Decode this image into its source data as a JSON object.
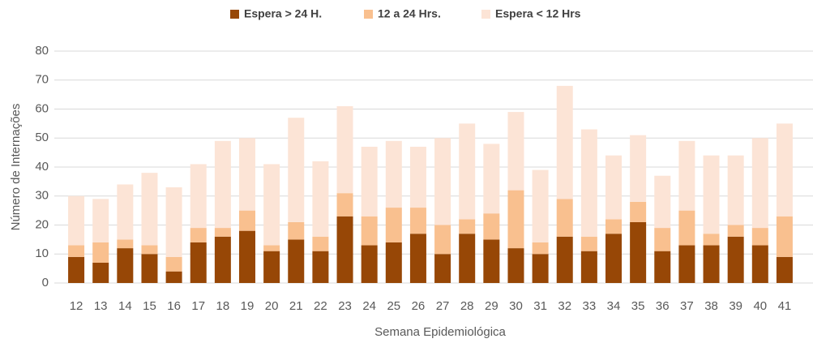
{
  "chart_data": {
    "type": "stacked_bar",
    "x_label": "Semana Epidemiológica",
    "y_label": "Número de Internações",
    "categories": [
      "12",
      "13",
      "14",
      "15",
      "16",
      "17",
      "18",
      "19",
      "20",
      "21",
      "22",
      "23",
      "24",
      "25",
      "26",
      "27",
      "28",
      "29",
      "30",
      "31",
      "32",
      "33",
      "34",
      "35",
      "36",
      "37",
      "38",
      "39",
      "40",
      "41"
    ],
    "series": [
      {
        "name": "Espera > 24 H.",
        "color": "#974706",
        "values": [
          9,
          7,
          12,
          10,
          4,
          14,
          16,
          18,
          11,
          15,
          11,
          23,
          13,
          14,
          17,
          10,
          17,
          15,
          12,
          10,
          16,
          11,
          17,
          21,
          11,
          13,
          13,
          16,
          13,
          9
        ]
      },
      {
        "name": "12 a 24 Hrs.",
        "color": "#f9c08f",
        "values": [
          4,
          7,
          3,
          3,
          5,
          5,
          3,
          7,
          2,
          6,
          5,
          8,
          10,
          12,
          9,
          10,
          5,
          9,
          20,
          4,
          13,
          5,
          5,
          7,
          8,
          12,
          4,
          4,
          6,
          14
        ]
      },
      {
        "name": "Espera < 12 Hrs",
        "color": "#fce4d6",
        "values": [
          17,
          15,
          19,
          25,
          24,
          22,
          30,
          25,
          28,
          36,
          26,
          30,
          24,
          23,
          21,
          30,
          33,
          24,
          27,
          25,
          39,
          37,
          22,
          23,
          18,
          24,
          27,
          24,
          31,
          32
        ]
      }
    ],
    "ylim": [
      0,
      80
    ],
    "yticks": [
      0,
      10,
      20,
      30,
      40,
      50,
      60,
      70,
      80
    ],
    "grid": true,
    "legend": "top"
  }
}
